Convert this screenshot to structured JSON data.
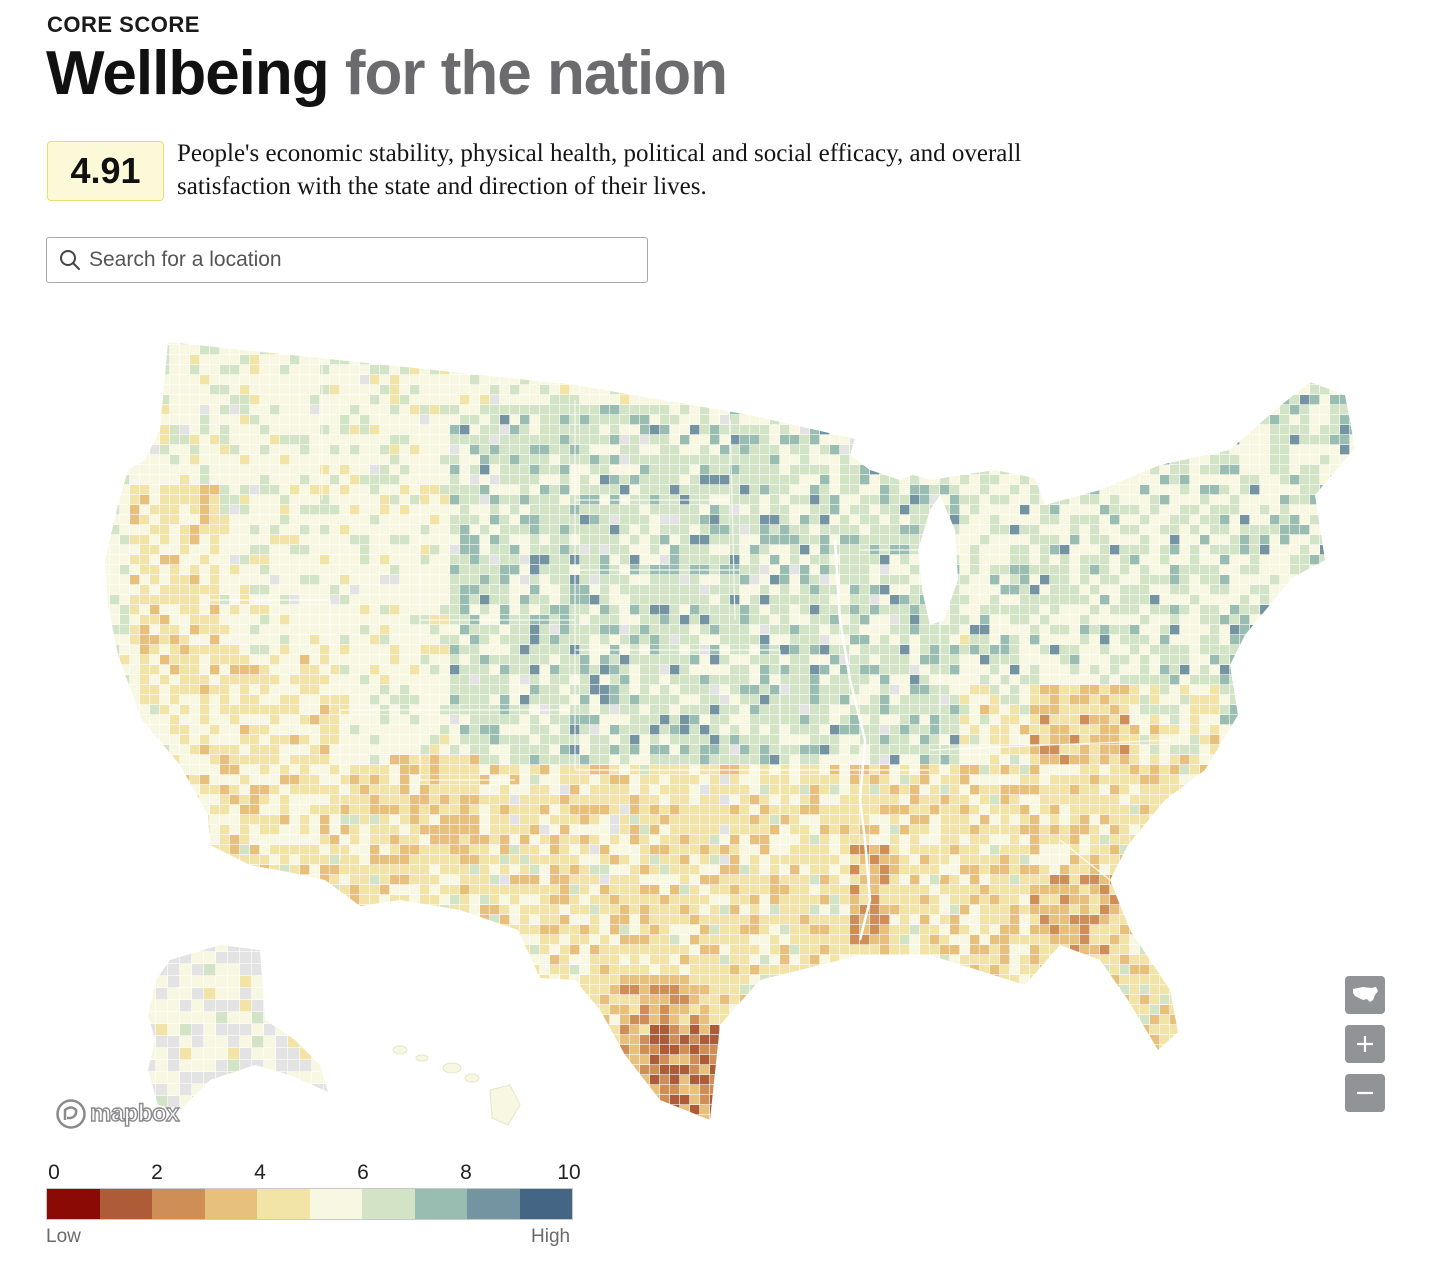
{
  "header": {
    "eyebrow": "CORE SCORE",
    "title_strong": "Wellbeing",
    "title_soft": "for the nation"
  },
  "score": {
    "value": "4.91",
    "description": "People's economic stability, physical health, political and social efficacy, and overall satisfaction with the state and direction of their lives."
  },
  "search": {
    "placeholder": "Search for a location",
    "icon": "search-icon"
  },
  "map": {
    "attribution": "mapbox",
    "controls": {
      "reset_icon": "us-map-icon",
      "zoom_in_icon": "plus-icon",
      "zoom_out_icon": "minus-icon"
    }
  },
  "legend": {
    "ticks": [
      "0",
      "2",
      "4",
      "6",
      "8",
      "10"
    ],
    "low_label": "Low",
    "high_label": "High",
    "colors": [
      "#8c0a05",
      "#ae5c38",
      "#d08e57",
      "#e7c17c",
      "#f2e3a6",
      "#f8f7e1",
      "#d3e3c5",
      "#9abdb2",
      "#7594a2",
      "#456585",
      "#283955"
    ]
  }
}
